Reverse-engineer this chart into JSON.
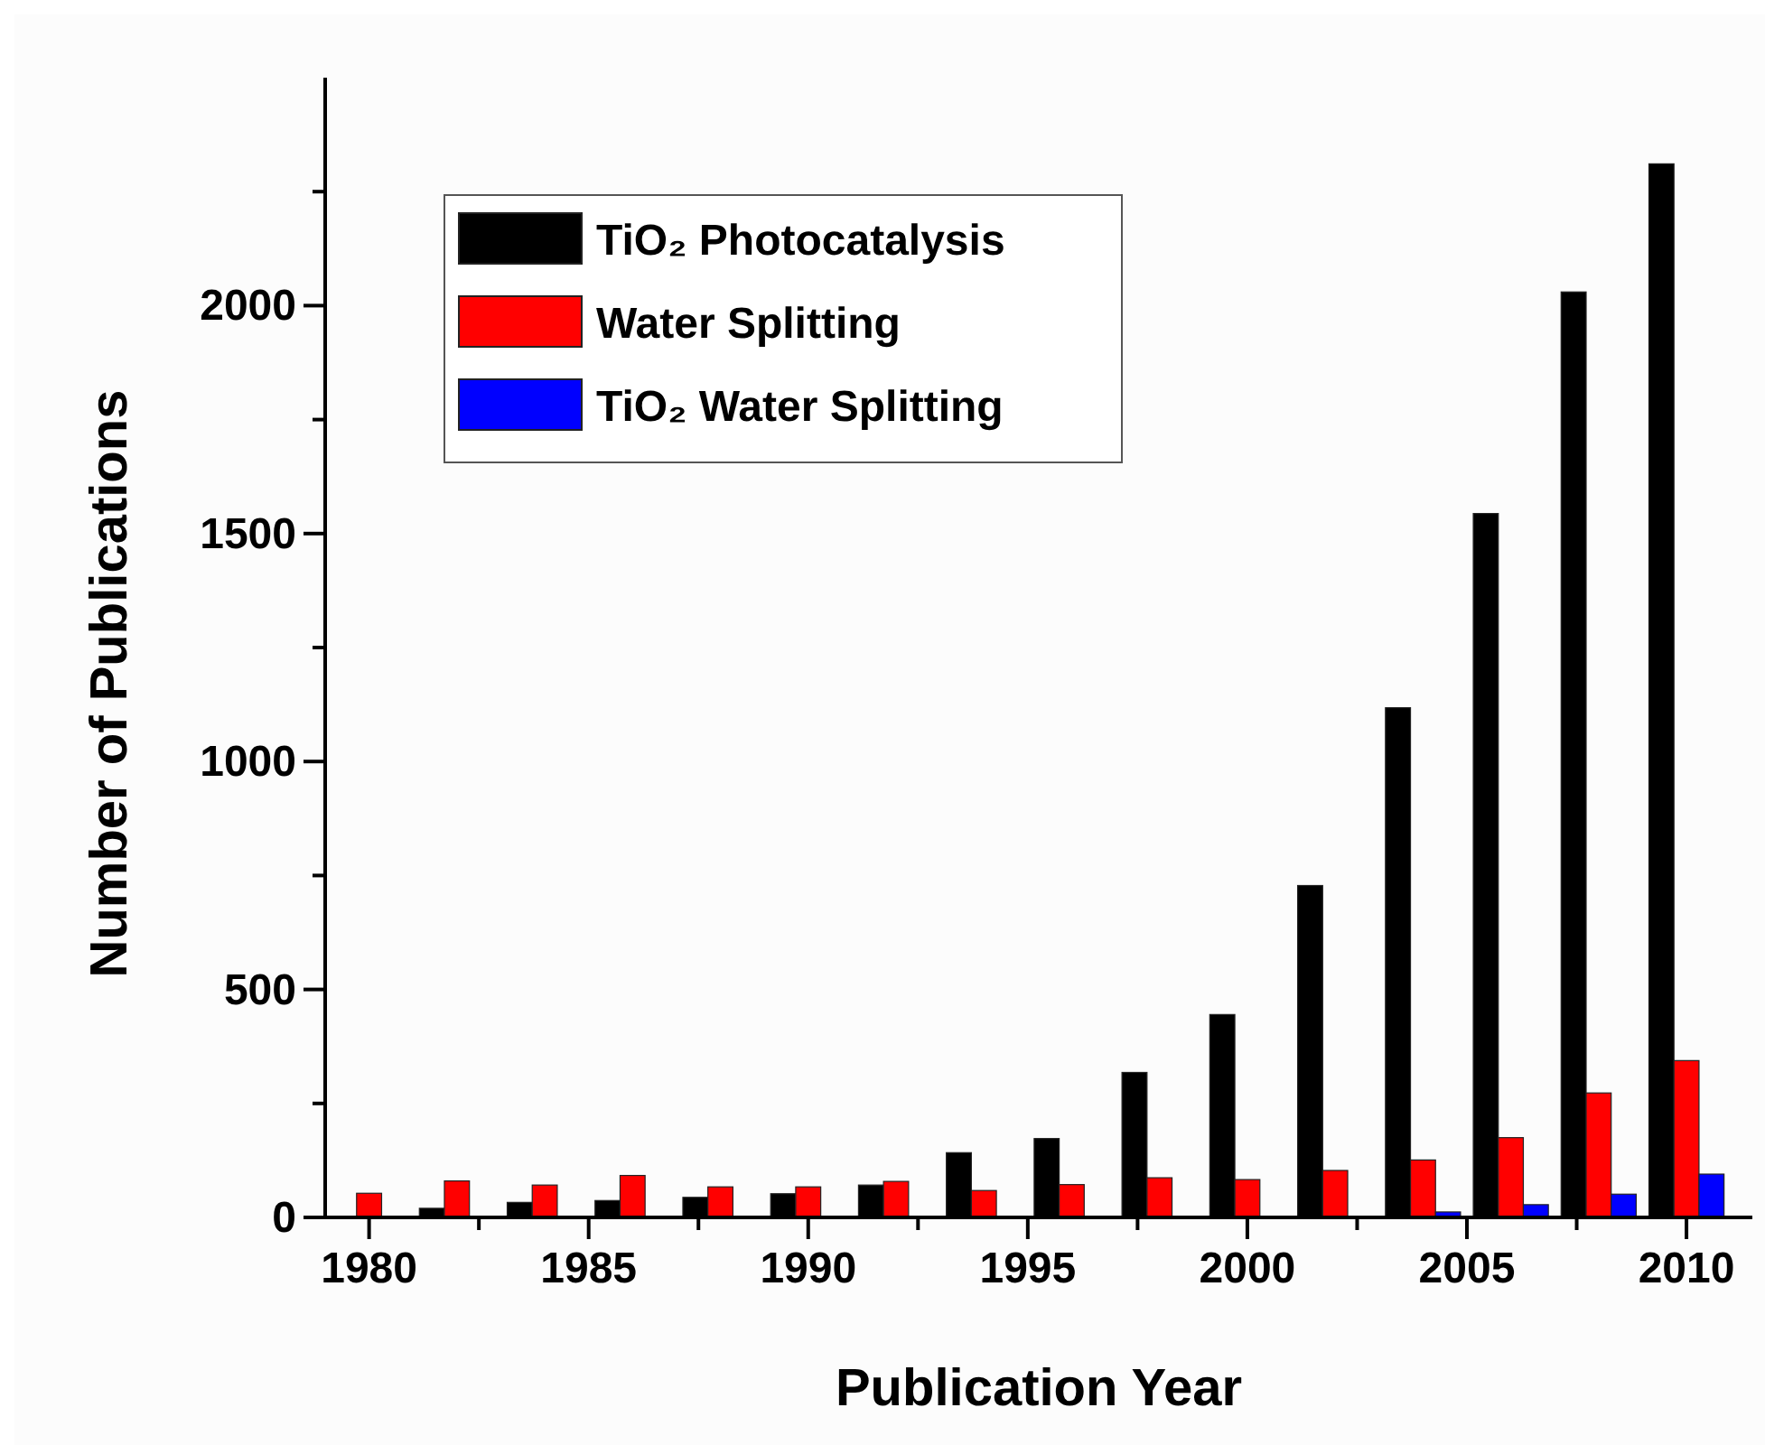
{
  "chart_data": {
    "type": "bar",
    "xlabel": "Publication Year",
    "ylabel": "Number of Publications",
    "x": [
      1980,
      1982,
      1984,
      1986,
      1988,
      1990,
      1992,
      1994,
      1996,
      1998,
      2000,
      2002,
      2004,
      2006,
      2008,
      2010
    ],
    "series": [
      {
        "name": "TiO₂ Photocatalysis",
        "color": "#000000",
        "values": [
          2,
          20,
          33,
          37,
          44,
          52,
          71,
          142,
          173,
          318,
          445,
          728,
          1118,
          1544,
          2030,
          2311
        ]
      },
      {
        "name": "Water Splitting",
        "color": "#ff0000",
        "values": [
          53,
          80,
          71,
          92,
          67,
          67,
          79,
          59,
          72,
          87,
          83,
          103,
          126,
          175,
          273,
          344
        ]
      },
      {
        "name": "TiO₂ Water Splitting",
        "color": "#0000ff",
        "values": [
          0,
          0,
          0,
          0,
          0,
          0,
          null,
          null,
          null,
          null,
          null,
          null,
          12,
          28,
          51,
          95
        ]
      }
    ],
    "xlim": [
      1979,
      2011.5
    ],
    "xticks": [
      1980,
      {
        "value": 1982.5,
        "label": null
      },
      1985,
      {
        "value": 1987.5,
        "label": null
      },
      1990,
      {
        "value": 1992.5,
        "label": null
      },
      1995,
      {
        "value": 1997.5,
        "label": null
      },
      2000,
      {
        "value": 2002.5,
        "label": null
      },
      2005,
      {
        "value": 2007.5,
        "label": null
      },
      2010
    ],
    "ylim": [
      0,
      2500
    ],
    "yticks": [
      0,
      {
        "value": 250,
        "label": null
      },
      500,
      {
        "value": 750,
        "label": null
      },
      1000,
      {
        "value": 1250,
        "label": null
      },
      1500,
      {
        "value": 1750,
        "label": null
      },
      2000,
      {
        "value": 2250,
        "label": null
      }
    ],
    "legend": "top left",
    "grid": false
  }
}
